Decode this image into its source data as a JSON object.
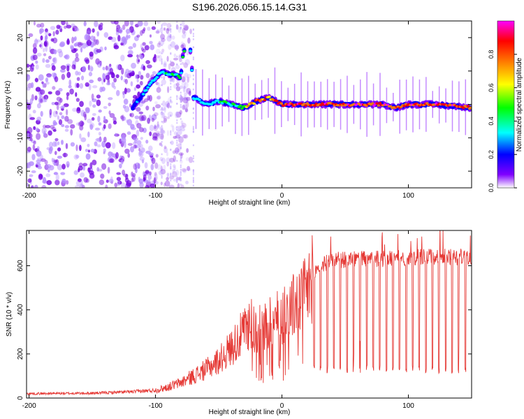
{
  "chart_data": [
    {
      "type": "heatmap",
      "title": "S196.2026.056.15.14.G31",
      "xlabel": "Height of straight line (km)",
      "ylabel": "Frequency (Hz)",
      "xlim": [
        -202,
        150
      ],
      "ylim": [
        -25,
        25
      ],
      "xticks": [
        -200,
        -100,
        0,
        100
      ],
      "xtick_labels": [
        "-200",
        "-100",
        "0",
        "100"
      ],
      "yticks": [
        -20,
        -10,
        0,
        10,
        20
      ],
      "ytick_labels": [
        "-20",
        "-10",
        "0",
        "10",
        "20"
      ],
      "colorbar": {
        "label": "Normalized spectral amplitude",
        "range": [
          0,
          1
        ],
        "ticks": [
          0.0,
          0.2,
          0.4,
          0.6,
          0.8
        ],
        "tick_labels": [
          "0.0",
          "0.2",
          "0.4",
          "0.6",
          "0.8"
        ],
        "colors": [
          "#ffffff",
          "#7f00ff",
          "#0000ff",
          "#00ffff",
          "#00ff00",
          "#ffff00",
          "#ff8000",
          "#ff0000",
          "#ff00ff"
        ]
      },
      "ridge": {
        "height_km": [
          -118,
          -110,
          -105,
          -100,
          -95,
          -90,
          -85,
          -80,
          -78,
          -75,
          -72,
          -70,
          -60,
          -50,
          -40,
          -30,
          -20,
          -10,
          0,
          20,
          40,
          60,
          80,
          90,
          100,
          120,
          150
        ],
        "frequency_hz": [
          -1,
          3,
          6,
          8,
          10,
          9,
          9,
          8,
          16,
          17,
          16,
          2,
          0,
          1,
          0,
          -1,
          1,
          2,
          0,
          0,
          0,
          0,
          0,
          -1,
          0,
          0,
          -1
        ],
        "peak_amplitude": [
          0.3,
          0.35,
          0.4,
          0.45,
          0.5,
          0.5,
          0.5,
          0.45,
          0.5,
          0.5,
          0.45,
          0.45,
          0.4,
          0.45,
          0.5,
          0.6,
          0.9,
          0.8,
          0.9,
          0.95,
          0.95,
          0.95,
          0.95,
          0.9,
          0.95,
          0.95,
          0.9
        ]
      },
      "noise_region_km": [
        -202,
        -72
      ]
    },
    {
      "type": "line",
      "xlabel": "Height of straight line (km)",
      "ylabel": "SNR (10 * v/v)",
      "xlim": [
        -202,
        150
      ],
      "ylim": [
        0,
        760
      ],
      "xticks": [
        -200,
        -100,
        0,
        100
      ],
      "xtick_labels": [
        "-200",
        "-100",
        "0",
        "100"
      ],
      "yticks": [
        0,
        200,
        400,
        600
      ],
      "ytick_labels": [
        "0",
        "200",
        "400",
        "600"
      ],
      "series": [
        {
          "name": "SNR",
          "color": "#e53935",
          "x": [
            -202,
            -150,
            -120,
            -100,
            -90,
            -80,
            -70,
            -60,
            -50,
            -40,
            -30,
            -25,
            -20,
            -10,
            0,
            10,
            20,
            25,
            30,
            40,
            60,
            80,
            100,
            120,
            150
          ],
          "y": [
            20,
            22,
            28,
            35,
            50,
            70,
            100,
            130,
            170,
            230,
            300,
            350,
            300,
            330,
            380,
            420,
            480,
            560,
            600,
            625,
            630,
            630,
            635,
            640,
            640
          ]
        }
      ],
      "dropouts": {
        "start_km": 25,
        "end_km": 148,
        "spacing_km": 5.2,
        "floor_value": 130
      }
    }
  ]
}
